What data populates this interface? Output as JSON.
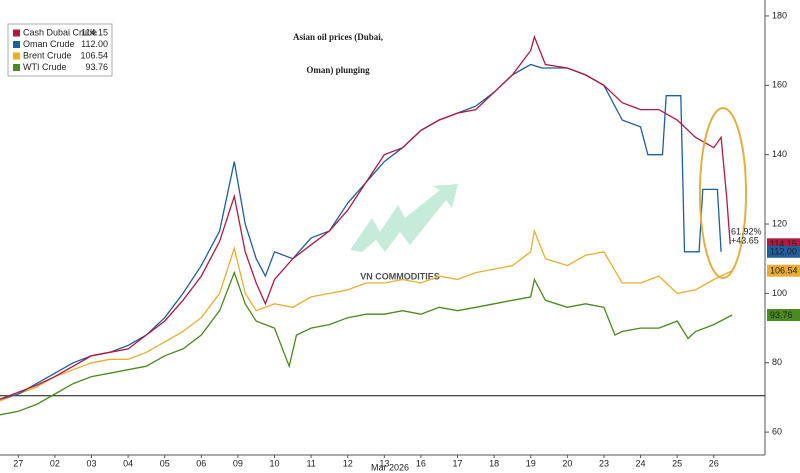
{
  "chart_data": {
    "type": "line",
    "title": [
      "Asian oil prices (Dubai,",
      "Oman) plunging"
    ],
    "watermark": "VN COMMODITIES",
    "x_axis_label": "Mar 2026",
    "xlim": [
      -0.5,
      20.4
    ],
    "xticks": [
      {
        "value": 0,
        "label": "27"
      },
      {
        "value": 1,
        "label": "02"
      },
      {
        "value": 2,
        "label": "03"
      },
      {
        "value": 3,
        "label": "04"
      },
      {
        "value": 4,
        "label": "05"
      },
      {
        "value": 5,
        "label": "06"
      },
      {
        "value": 6,
        "label": "09"
      },
      {
        "value": 7,
        "label": "10"
      },
      {
        "value": 8,
        "label": "11"
      },
      {
        "value": 9,
        "label": "12"
      },
      {
        "value": 10,
        "label": "13"
      },
      {
        "value": 11,
        "label": "16"
      },
      {
        "value": 12,
        "label": "17"
      },
      {
        "value": 13,
        "label": "18"
      },
      {
        "value": 14,
        "label": "19"
      },
      {
        "value": 15,
        "label": "20"
      },
      {
        "value": 16,
        "label": "23"
      },
      {
        "value": 17,
        "label": "24"
      },
      {
        "value": 18,
        "label": "25"
      },
      {
        "value": 19,
        "label": "26"
      }
    ],
    "ylim": [
      53.4,
      184.6
    ],
    "yticks": [
      60,
      80,
      100,
      120,
      140,
      160,
      180
    ],
    "reference_line": 70.5,
    "annotations": [
      "61.92%",
      "+43.65"
    ],
    "grid": false,
    "legend": "top-left",
    "series": [
      {
        "name": "Cash Dubai Crude",
        "color": "#b01a40",
        "last_label": "114.15",
        "x": [
          -0.5,
          0,
          0.5,
          1,
          1.5,
          2,
          2.5,
          3,
          3.5,
          4,
          4.5,
          5,
          5.5,
          5.9,
          6.2,
          6.5,
          6.75,
          7,
          7.5,
          8,
          8.5,
          9,
          9.5,
          10,
          10.5,
          11,
          11.5,
          12,
          12.5,
          13,
          13.5,
          14,
          14.1,
          14.4,
          15,
          15.5,
          16,
          16.5,
          17,
          17.5,
          18,
          18.5,
          19,
          19.2,
          19.35,
          19.45
        ],
        "values": [
          69.5,
          71.5,
          73.5,
          76,
          79,
          82,
          83,
          84,
          88,
          92,
          98,
          105,
          115,
          128,
          112,
          103,
          97,
          104,
          110,
          114,
          118,
          124,
          132,
          140,
          142,
          147,
          150,
          152,
          153,
          158,
          163,
          170,
          174,
          166,
          165,
          163,
          160,
          155,
          153,
          153,
          150,
          145,
          142,
          145,
          128,
          114.15
        ]
      },
      {
        "name": "Oman Crude",
        "color": "#1f5f9e",
        "last_label": "112.00",
        "x": [
          -0.5,
          0,
          0.5,
          1,
          1.5,
          2,
          2.5,
          3,
          3.5,
          4,
          4.5,
          5,
          5.5,
          5.9,
          6.2,
          6.5,
          6.75,
          7,
          7.5,
          8,
          8.5,
          9,
          9.5,
          10,
          10.5,
          11,
          11.5,
          12,
          12.5,
          13,
          13.5,
          14,
          14.3,
          15,
          15.5,
          16,
          16.5,
          17,
          17.2,
          17.6,
          17.7,
          18.1,
          18.2,
          18.6,
          18.7,
          19.1,
          19.2
        ],
        "values": [
          69.5,
          71,
          74,
          77,
          80,
          82,
          83,
          85,
          88,
          93,
          100,
          108,
          118,
          138,
          120,
          110,
          105,
          112,
          110,
          116,
          118,
          126,
          132,
          138,
          142,
          147,
          150,
          152,
          154,
          158,
          163,
          166,
          165,
          165,
          163,
          160,
          150,
          148,
          140,
          140,
          157,
          157,
          112,
          112,
          130,
          130,
          112
        ]
      },
      {
        "name": "Brent Crude",
        "color": "#e8ae30",
        "last_label": "106.54",
        "x": [
          -0.5,
          0,
          0.5,
          1,
          1.5,
          2,
          2.5,
          3,
          3.5,
          4,
          4.5,
          5,
          5.5,
          5.9,
          6.2,
          6.5,
          7,
          7.5,
          8,
          8.5,
          9,
          9.5,
          10,
          10.5,
          11,
          11.5,
          12,
          12.5,
          13,
          13.5,
          14,
          14.1,
          14.4,
          15,
          15.5,
          16,
          16.5,
          17,
          17.5,
          18,
          18.5,
          19,
          19.5
        ],
        "values": [
          69,
          71,
          73,
          76,
          78,
          80,
          81,
          81,
          83,
          86,
          89,
          93,
          100,
          113,
          100,
          95,
          97,
          96,
          99,
          100,
          101,
          103,
          103,
          104,
          103,
          105,
          104,
          106,
          107,
          108,
          112,
          118,
          110,
          108,
          111,
          112,
          103,
          103,
          105,
          100,
          101,
          104,
          106.54
        ]
      },
      {
        "name": "WTI Crude",
        "color": "#4a8a1e",
        "last_label": "93.76",
        "x": [
          -0.5,
          0,
          0.5,
          1,
          1.5,
          2,
          2.5,
          3,
          3.5,
          4,
          4.5,
          5,
          5.5,
          5.9,
          6.2,
          6.5,
          7,
          7.4,
          7.6,
          8,
          8.5,
          9,
          9.5,
          10,
          10.5,
          11,
          11.5,
          12,
          12.5,
          13,
          13.5,
          14,
          14.1,
          14.4,
          15,
          15.5,
          16,
          16.3,
          16.5,
          17,
          17.5,
          18,
          18.3,
          18.5,
          19,
          19.5
        ],
        "values": [
          65,
          66,
          68,
          71,
          74,
          76,
          77,
          78,
          79,
          82,
          84,
          88,
          95,
          106,
          97,
          92,
          90,
          79,
          88,
          90,
          91,
          93,
          94,
          94,
          95,
          94,
          96,
          95,
          96,
          97,
          98,
          99,
          104,
          98,
          96,
          97,
          96,
          88,
          89,
          90,
          90,
          92,
          87,
          89,
          91,
          93.76
        ]
      }
    ]
  }
}
